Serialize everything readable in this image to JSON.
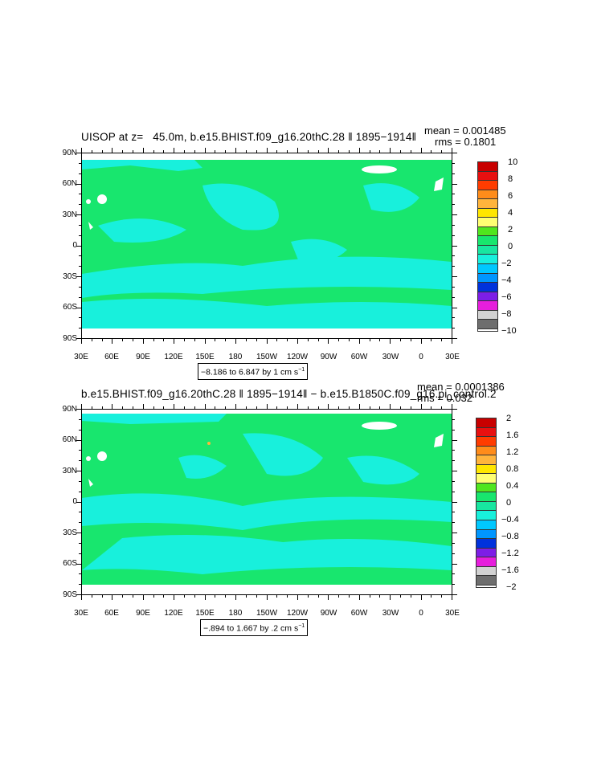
{
  "panels": [
    {
      "title": "UISOP at z=   45.0m, b.e15.BHIST.f09_g16.20thC.28 ‖ 1895−1914‖",
      "mean_text": "mean = 0.001485",
      "rms_text": "rms = 0.1801",
      "range_text": "−8.186 to 6.847 by 1 cm s",
      "range_exp": "−1",
      "colorbar": {
        "labels": [
          "10",
          "8",
          "6",
          "4",
          "2",
          "0",
          "−2",
          "−4",
          "−6",
          "−8",
          "−10"
        ],
        "colors": [
          "#c80000",
          "#e81010",
          "#ff3c00",
          "#ff8c1a",
          "#ffb43c",
          "#ffe600",
          "#ffff73",
          "#50e61e",
          "#18e66e",
          "#18e6a0",
          "#18f0dc",
          "#00c8ff",
          "#0096ff",
          "#0032dc",
          "#7d1ee6",
          "#e61edc",
          "#d2d2d2",
          "#6e6e6e"
        ]
      }
    },
    {
      "title": "b.e15.BHIST.f09_g16.20thC.28 ‖ 1895−1914‖ − b.e15.B1850C.f09_g16.pi_control.2",
      "mean_text": "mean = 0.0001386",
      "rms_text": "rms = 0.032",
      "range_text": "−.894 to 1.667 by .2 cm s",
      "range_exp": "−1",
      "colorbar": {
        "labels": [
          "2",
          "1.6",
          "1.2",
          "0.8",
          "0.4",
          "0",
          "−0.4",
          "−0.8",
          "−1.2",
          "−1.6",
          "−2"
        ],
        "colors": [
          "#c80000",
          "#e81010",
          "#ff3c00",
          "#ff8c1a",
          "#ffb43c",
          "#ffe600",
          "#ffff73",
          "#50e61e",
          "#18e66e",
          "#18e6a0",
          "#18f0dc",
          "#00c8ff",
          "#0096ff",
          "#0032dc",
          "#7d1ee6",
          "#e61edc",
          "#d2d2d2",
          "#6e6e6e"
        ]
      }
    }
  ],
  "axes": {
    "lat_labels": [
      "90N",
      "60N",
      "30N",
      "0",
      "30S",
      "60S",
      "90S"
    ],
    "lon_labels": [
      "30E",
      "60E",
      "90E",
      "120E",
      "150E",
      "180",
      "150W",
      "120W",
      "90W",
      "60W",
      "30W",
      "0",
      "30E"
    ]
  },
  "map_colors": {
    "ocean_main": "#18e66e",
    "ocean_alt": "#18f0dc",
    "land": "#ffffff"
  }
}
